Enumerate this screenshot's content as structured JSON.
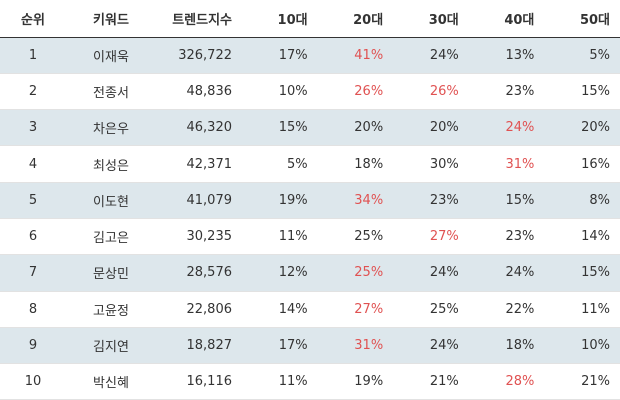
{
  "headers": {
    "rank": "순위",
    "keyword": "키워드",
    "trend": "트렌드지수",
    "age10": "10대",
    "age20": "20대",
    "age30": "30대",
    "age40": "40대",
    "age50": "50대"
  },
  "highlight_color": "#e05252",
  "stripe_color": "#dde7ec",
  "rows": [
    {
      "rank": "1",
      "keyword": "이재욱",
      "trend": "326,722",
      "ages": [
        "17%",
        "41%",
        "24%",
        "13%",
        "5%"
      ],
      "highlight": [
        false,
        true,
        false,
        false,
        false
      ]
    },
    {
      "rank": "2",
      "keyword": "전종서",
      "trend": "48,836",
      "ages": [
        "10%",
        "26%",
        "26%",
        "23%",
        "15%"
      ],
      "highlight": [
        false,
        true,
        true,
        false,
        false
      ]
    },
    {
      "rank": "3",
      "keyword": "차은우",
      "trend": "46,320",
      "ages": [
        "15%",
        "20%",
        "20%",
        "24%",
        "20%"
      ],
      "highlight": [
        false,
        false,
        false,
        true,
        false
      ]
    },
    {
      "rank": "4",
      "keyword": "최성은",
      "trend": "42,371",
      "ages": [
        "5%",
        "18%",
        "30%",
        "31%",
        "16%"
      ],
      "highlight": [
        false,
        false,
        false,
        true,
        false
      ]
    },
    {
      "rank": "5",
      "keyword": "이도현",
      "trend": "41,079",
      "ages": [
        "19%",
        "34%",
        "23%",
        "15%",
        "8%"
      ],
      "highlight": [
        false,
        true,
        false,
        false,
        false
      ]
    },
    {
      "rank": "6",
      "keyword": "김고은",
      "trend": "30,235",
      "ages": [
        "11%",
        "25%",
        "27%",
        "23%",
        "14%"
      ],
      "highlight": [
        false,
        false,
        true,
        false,
        false
      ]
    },
    {
      "rank": "7",
      "keyword": "문상민",
      "trend": "28,576",
      "ages": [
        "12%",
        "25%",
        "24%",
        "24%",
        "15%"
      ],
      "highlight": [
        false,
        true,
        false,
        false,
        false
      ]
    },
    {
      "rank": "8",
      "keyword": "고윤정",
      "trend": "22,806",
      "ages": [
        "14%",
        "27%",
        "25%",
        "22%",
        "11%"
      ],
      "highlight": [
        false,
        true,
        false,
        false,
        false
      ]
    },
    {
      "rank": "9",
      "keyword": "김지연",
      "trend": "18,827",
      "ages": [
        "17%",
        "31%",
        "24%",
        "18%",
        "10%"
      ],
      "highlight": [
        false,
        true,
        false,
        false,
        false
      ]
    },
    {
      "rank": "10",
      "keyword": "박신혜",
      "trend": "16,116",
      "ages": [
        "11%",
        "19%",
        "21%",
        "28%",
        "21%"
      ],
      "highlight": [
        false,
        false,
        false,
        true,
        false
      ]
    }
  ]
}
